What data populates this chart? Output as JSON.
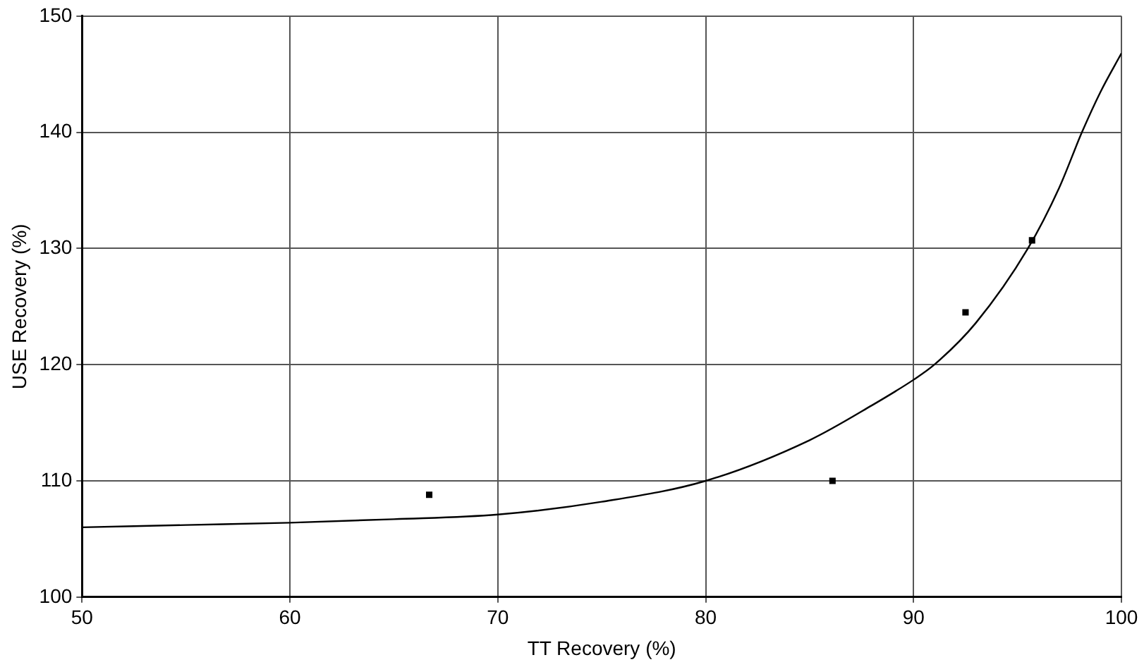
{
  "chart_data": {
    "type": "scatter",
    "xlabel": "TT Recovery (%)",
    "ylabel": "USE Recovery (%)",
    "xlim": [
      50,
      100
    ],
    "xticks": [
      50,
      60,
      70,
      80,
      90,
      100
    ],
    "ylim": [
      100,
      150
    ],
    "yticks": [
      100,
      110,
      120,
      130,
      140,
      150
    ],
    "grid": true,
    "legend": false,
    "marker": "square",
    "series": [
      {
        "color": "#000000",
        "x": [
          66.7,
          86.1,
          92.5,
          95.7
        ],
        "values": [
          108.8,
          110.0,
          124.5,
          130.7
        ]
      },
      {
        "type": "line",
        "color": "#000000",
        "marker": "none",
        "x": [
          50,
          55,
          60,
          65,
          70,
          75,
          80,
          85,
          88,
          90,
          91,
          93,
          95.5,
          97,
          98.1,
          99,
          100
        ],
        "values": [
          106.0,
          106.2,
          106.4,
          106.7,
          107.1,
          108.2,
          110.0,
          113.5,
          116.5,
          118.7,
          120.0,
          123.6,
          130.0,
          135.2,
          140.0,
          143.5,
          146.8
        ]
      }
    ]
  }
}
